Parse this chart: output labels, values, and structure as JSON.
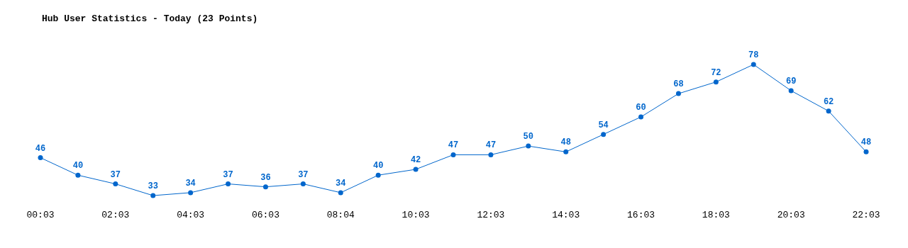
{
  "chart_data": {
    "type": "line",
    "title": "Hub User Statistics - Today (23 Points)",
    "categories": [
      "00:03",
      null,
      "02:03",
      null,
      "04:03",
      null,
      "06:03",
      null,
      "08:04",
      null,
      "10:03",
      null,
      "12:03",
      null,
      "14:03",
      null,
      "16:03",
      null,
      "18:03",
      null,
      "20:03",
      null,
      "22:03"
    ],
    "series": [
      {
        "color": "#0066cc",
        "values": [
          46,
          40,
          37,
          33,
          34,
          37,
          36,
          37,
          34,
          40,
          42,
          47,
          47,
          50,
          48,
          54,
          60,
          68,
          72,
          78,
          69,
          62,
          48
        ]
      }
    ],
    "data_labels": true,
    "marker": "circle"
  }
}
